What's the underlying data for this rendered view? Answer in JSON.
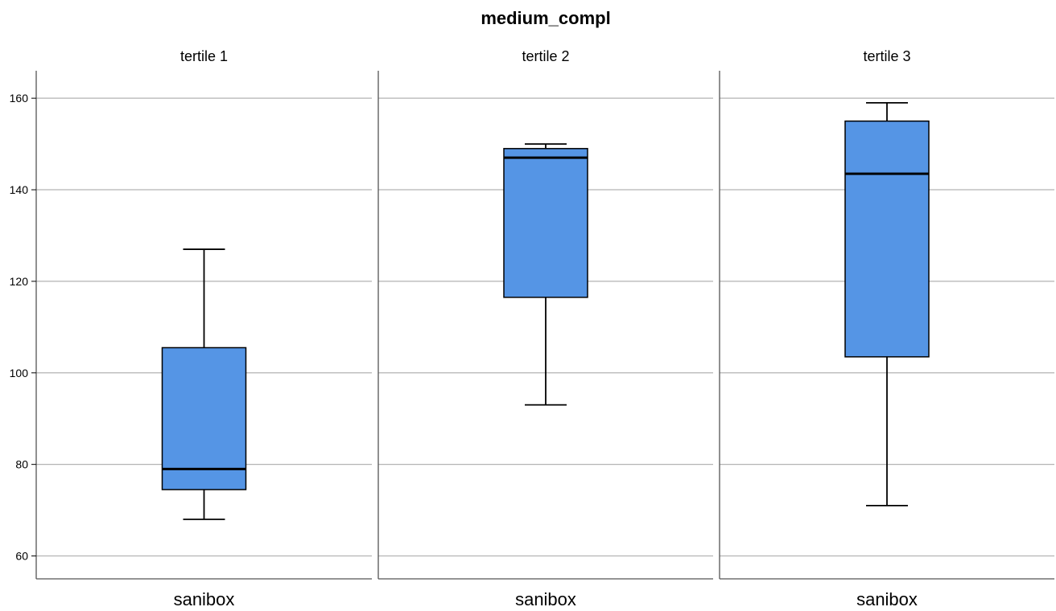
{
  "chart_data": {
    "type": "boxplot",
    "title": "medium_compl",
    "ylim": [
      55,
      166
    ],
    "yticks": [
      60,
      80,
      100,
      120,
      140,
      160
    ],
    "grid": true,
    "box_color": "#5595e5",
    "panels": [
      {
        "title": "tertile 1",
        "category": "sanibox",
        "min": 68,
        "q1": 74.5,
        "median": 79,
        "q3": 105.5,
        "max": 127
      },
      {
        "title": "tertile 2",
        "category": "sanibox",
        "min": 93,
        "q1": 116.5,
        "median": 147,
        "q3": 149,
        "max": 150
      },
      {
        "title": "tertile 3",
        "category": "sanibox",
        "min": 71,
        "q1": 103.5,
        "median": 143.5,
        "q3": 155,
        "max": 159
      }
    ]
  }
}
